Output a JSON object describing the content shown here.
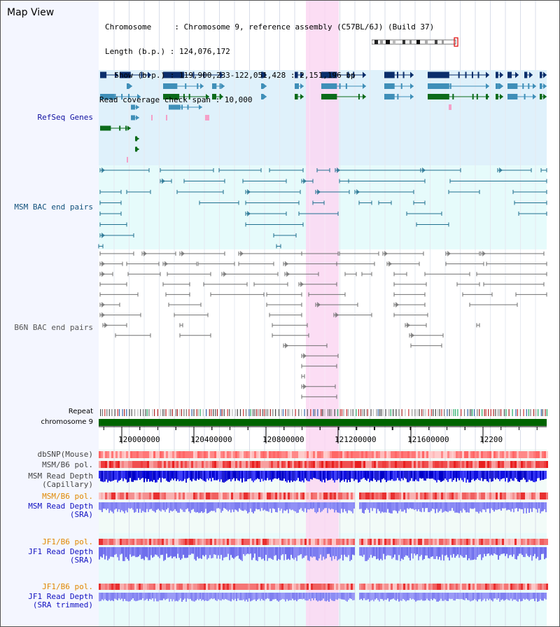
{
  "view": {
    "title": "Map View",
    "info_lines": [
      "Chromosome     : Chromosome 9, reference assembly (C57BL/6J) (Build 37)",
      "Length (b.p.) : 124,076,172",
      "  Show (b.p.) : 119,900,233-122,051,428 : 2,151,196 bp",
      "Read coverage check span : 10,000"
    ]
  },
  "tracks": {
    "refseq": "RefSeq Genes",
    "msm_bac": "MSM BAC end pairs",
    "b6n_bac": "B6N BAC end pairs",
    "repeat": "Repeat",
    "chromosome": "chromosome 9",
    "dbsnp": "dbSNP(Mouse)",
    "msm_b6_pol": "MSM/B6 pol.",
    "msm_read_depth_cap_1": "MSM Read Depth",
    "msm_read_depth_cap_2": "(Capillary)",
    "msm_b6_pol_2": "MSM/B6 pol.",
    "msm_read_depth_sra_1": "MSM Read Depth",
    "msm_read_depth_sra_2": "(SRA)",
    "jf1_b6_pol": "JF1/B6 pol.",
    "jf1_read_depth_sra_1": "JF1 Read Depth",
    "jf1_read_depth_sra_2": "(SRA)",
    "jf1_b6_pol_2": "JF1/B6 pol.",
    "jf1_read_depth_trim_1": "JF1 Read Depth",
    "jf1_read_depth_trim_2": "(SRA trimmed)"
  },
  "axis": {
    "tick_labels": [
      "120000000",
      "120400000",
      "120800000",
      "121200000",
      "121600000",
      "12200"
    ]
  },
  "colors": {
    "refseq_bg": "#dff1fb",
    "msm_bac_bg": "#e6fbfb",
    "highlight": "#fbd7f2",
    "chromosome": "#006400",
    "refseq_dark": "#0b2e6b",
    "refseq_mid": "#3f8fb8",
    "refseq_green": "#0b6b1a",
    "msm_line": "#1f6f8f",
    "b6n_line": "#707070",
    "depth_blue": "#2a2ae6",
    "depth_lavender": "#8c8cf4",
    "pol_red": "#f05050"
  }
}
